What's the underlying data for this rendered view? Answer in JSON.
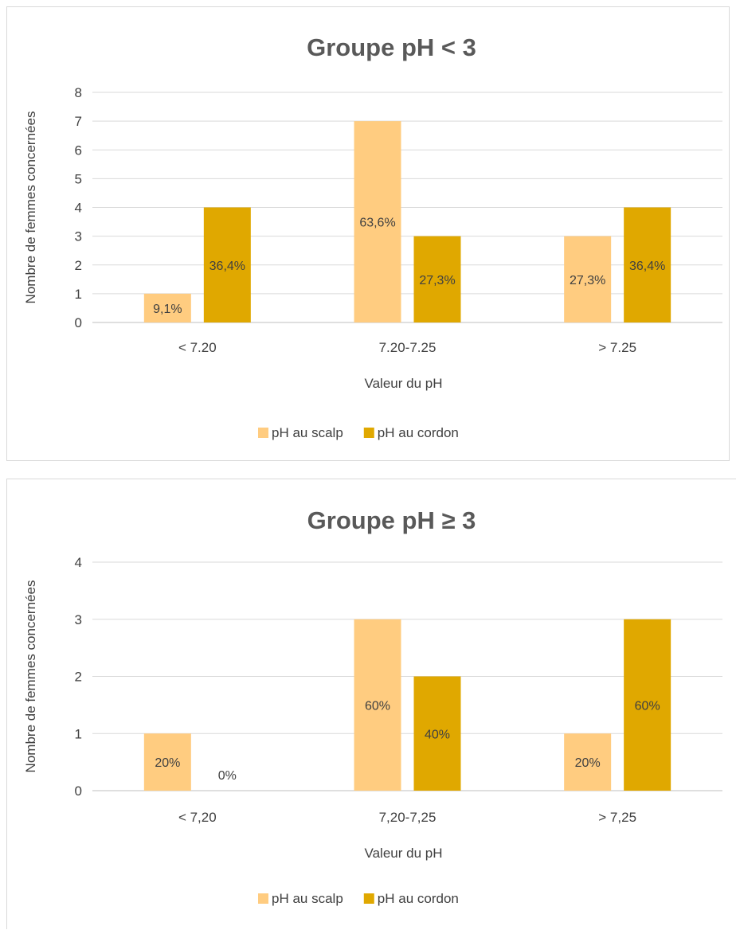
{
  "chart_data": [
    {
      "type": "bar",
      "title": "Groupe pH < 3",
      "xlabel": "Valeur du pH",
      "ylabel": "Nombre de femmes concernées",
      "ylim": [
        0,
        8
      ],
      "yticks": [
        "0",
        "1",
        "2",
        "3",
        "4",
        "5",
        "6",
        "7",
        "8"
      ],
      "grid": true,
      "legend_position": "bottom",
      "categories": [
        "< 7.20",
        "7.20-7.25",
        "> 7.25"
      ],
      "series": [
        {
          "name": "pH au scalp",
          "color": "#ffcc80",
          "values": [
            1,
            7,
            3
          ],
          "labels": [
            "9,1%",
            "63,6%",
            "27,3%"
          ]
        },
        {
          "name": "pH au cordon",
          "color": "#e0a800",
          "values": [
            4,
            3,
            4
          ],
          "labels": [
            "36,4%",
            "27,3%",
            "36,4%"
          ]
        }
      ]
    },
    {
      "type": "bar",
      "title": "Groupe pH ≥ 3",
      "xlabel": "Valeur du pH",
      "ylabel": "Nombre de femmes concernées",
      "ylim": [
        0,
        4
      ],
      "yticks": [
        "0",
        "1",
        "2",
        "3",
        "4"
      ],
      "grid": true,
      "legend_position": "bottom",
      "categories": [
        "< 7,20",
        "7,20-7,25",
        "> 7,25"
      ],
      "series": [
        {
          "name": "pH au scalp",
          "color": "#ffcc80",
          "values": [
            1,
            3,
            1
          ],
          "labels": [
            "20%",
            "60%",
            "20%"
          ]
        },
        {
          "name": "pH au cordon",
          "color": "#e0a800",
          "values": [
            0,
            2,
            3
          ],
          "labels": [
            "0%",
            "40%",
            "60%"
          ]
        }
      ]
    }
  ]
}
